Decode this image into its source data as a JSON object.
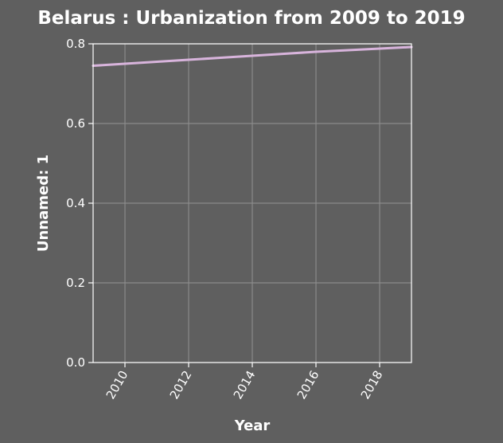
{
  "chart_data": {
    "type": "line",
    "title": "Belarus : Urbanization from 2009 to 2019",
    "xlabel": "Year",
    "ylabel": "Unnamed: 1",
    "xlim": [
      2009,
      2019
    ],
    "ylim": [
      0,
      0.8
    ],
    "xticks": [
      2010,
      2012,
      2014,
      2016,
      2018
    ],
    "xtick_labels": [
      "2010",
      "2012",
      "2014",
      "2016",
      "2018"
    ],
    "yticks": [
      0,
      0.2,
      0.4,
      0.6,
      0.8
    ],
    "ytick_labels": [
      "0.0",
      "0.2",
      "0.4",
      "0.6",
      "0.8"
    ],
    "grid": true,
    "series": [
      {
        "color": "#d8b4dc",
        "x": [
          2009,
          2010,
          2011,
          2012,
          2013,
          2014,
          2015,
          2016,
          2017,
          2018,
          2019
        ],
        "y": [
          0.745,
          0.75,
          0.755,
          0.76,
          0.765,
          0.77,
          0.775,
          0.78,
          0.784,
          0.788,
          0.792
        ]
      }
    ]
  }
}
